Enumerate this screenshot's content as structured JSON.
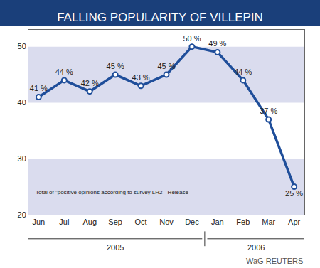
{
  "chart_data": {
    "type": "line",
    "title": "FALLING POPULARITY OF VILLEPIN",
    "categories": [
      "Jun",
      "Jul",
      "Aug",
      "Sep",
      "Oct",
      "Nov",
      "Dec",
      "Jan",
      "Feb",
      "Mar",
      "Apr"
    ],
    "values": [
      41,
      44,
      42,
      45,
      43,
      45,
      50,
      49,
      44,
      37,
      25
    ],
    "value_labels": [
      "41 %",
      "44 %",
      "42 %",
      "45 %",
      "43 %",
      "45 %",
      "50 %",
      "49 %",
      "44 %",
      "37 %",
      "25 %"
    ],
    "data_labels": true,
    "color": "#1f4e9a",
    "marker": "circle",
    "ylim": [
      20,
      53
    ],
    "yticks": [
      20,
      30,
      40,
      50
    ],
    "grid": false,
    "periods": [
      {
        "label": "2005",
        "from": "Jun",
        "to": "Dec"
      },
      {
        "label": "2006",
        "from": "Jan",
        "to": "Apr"
      }
    ],
    "note": "Total of \"positive opinions according to survey LH2 - Release",
    "source": "WaG REUTERS"
  }
}
